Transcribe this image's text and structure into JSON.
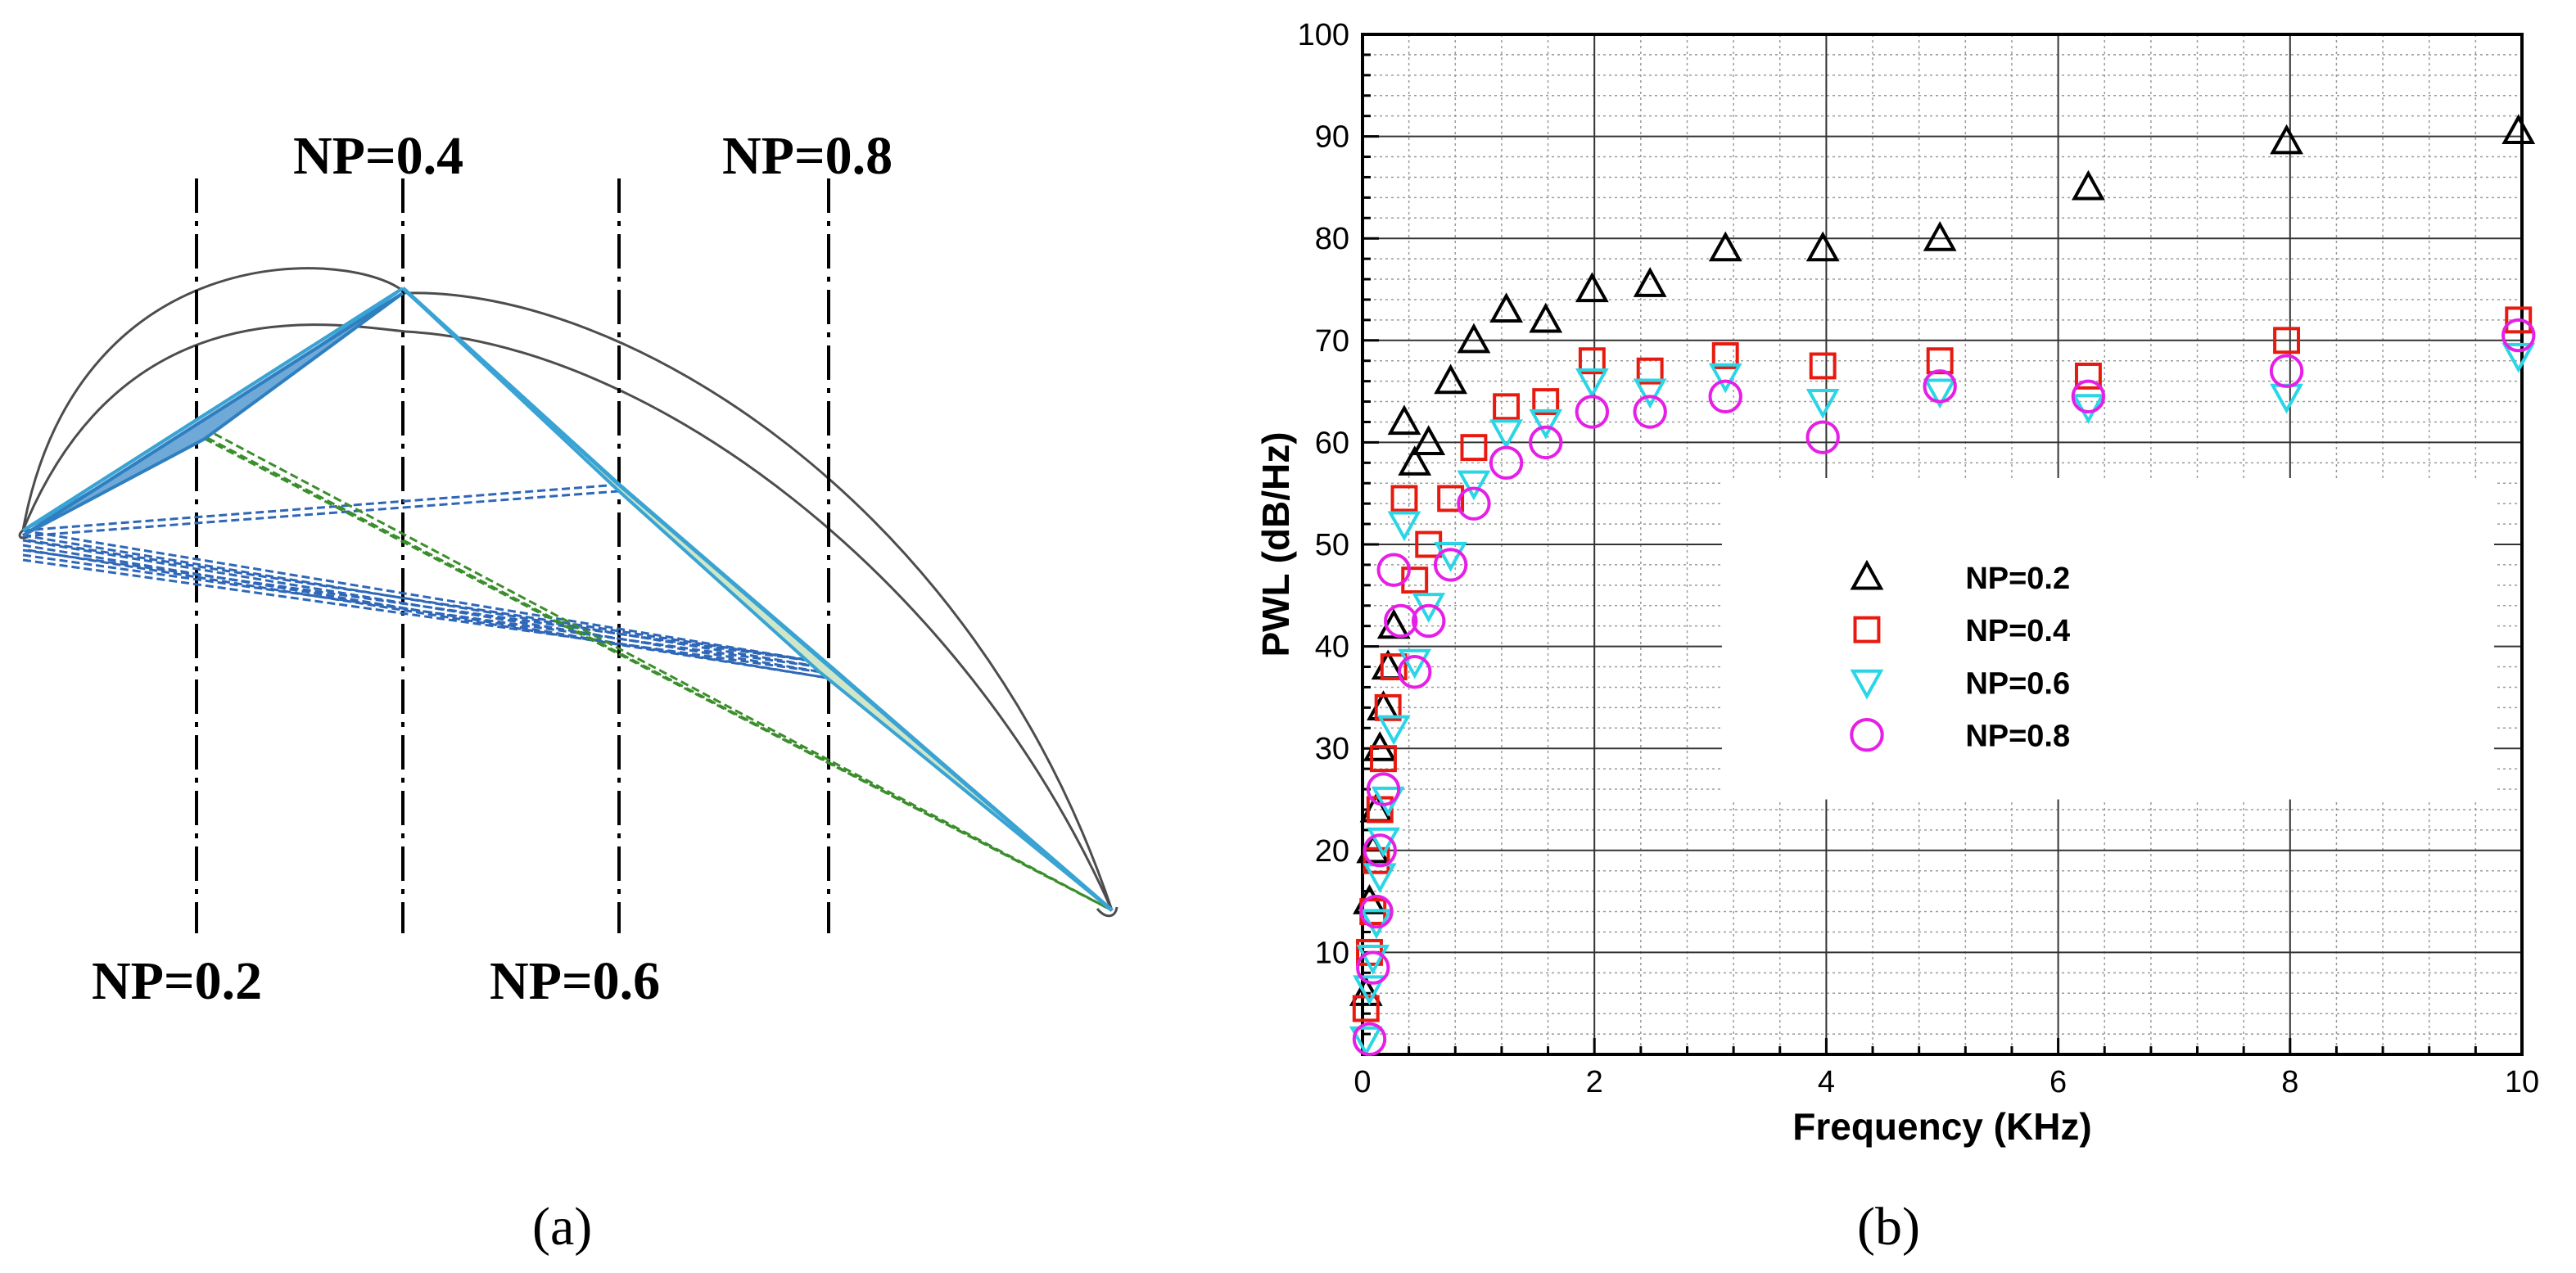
{
  "panel_a": {
    "labels": {
      "np02": "NP=0.2",
      "np04": "NP=0.4",
      "np06": "NP=0.6",
      "np08": "NP=0.8"
    },
    "caption": "(a)",
    "colors": {
      "outline": "#4d4d4d",
      "blue": "#2f67b8",
      "teal": "#39a3d4",
      "green": "#3b8e2c",
      "fill": "#cfe6c8"
    }
  },
  "panel_b": {
    "caption": "(b)"
  },
  "chart_data": {
    "type": "scatter",
    "title": "",
    "xlabel": "Frequency (KHz)",
    "ylabel": "PWL (dB/Hz)",
    "xlim": [
      0,
      10
    ],
    "ylim": [
      0,
      100
    ],
    "xticks": [
      "0",
      "2",
      "4",
      "6",
      "8",
      "10"
    ],
    "yticks": [
      "10",
      "20",
      "30",
      "40",
      "50",
      "60",
      "70",
      "80",
      "90",
      "100"
    ],
    "grid": true,
    "legend": "center-right",
    "series": [
      {
        "name": "NP=0.2",
        "marker": "triangle-up",
        "color": "#000000",
        "x": [
          0.03,
          0.06,
          0.09,
          0.12,
          0.15,
          0.18,
          0.22,
          0.27,
          0.36,
          0.45,
          0.57,
          0.76,
          0.96,
          1.24,
          1.58,
          1.98,
          2.48,
          3.13,
          3.97,
          4.98,
          6.26,
          7.97,
          9.97
        ],
        "y": [
          6,
          15,
          20,
          24,
          30,
          34,
          38,
          42,
          62,
          58,
          60,
          66,
          70,
          73,
          72,
          75,
          75.5,
          79,
          79,
          80,
          85,
          89.5,
          90.5
        ]
      },
      {
        "name": "NP=0.4",
        "marker": "square",
        "color": "#e8190f",
        "x": [
          0.03,
          0.06,
          0.09,
          0.12,
          0.15,
          0.18,
          0.22,
          0.27,
          0.36,
          0.45,
          0.57,
          0.76,
          0.96,
          1.24,
          1.58,
          1.98,
          2.48,
          3.13,
          3.97,
          4.98,
          6.26,
          7.97,
          9.97
        ],
        "y": [
          4.5,
          10,
          14,
          19,
          24,
          29,
          34,
          38,
          54.5,
          46.5,
          50,
          54.5,
          59.5,
          63.5,
          64,
          68,
          67,
          68.5,
          67.5,
          68,
          66.5,
          70,
          72
        ]
      },
      {
        "name": "NP=0.6",
        "marker": "triangle-down",
        "color": "#2ad6e6",
        "x": [
          0.03,
          0.06,
          0.09,
          0.12,
          0.15,
          0.18,
          0.22,
          0.27,
          0.36,
          0.45,
          0.57,
          0.76,
          0.96,
          1.24,
          1.58,
          1.98,
          2.48,
          3.13,
          3.97,
          4.98,
          6.26,
          7.97,
          9.97
        ],
        "y": [
          1.5,
          6.5,
          9.5,
          13,
          17.5,
          21,
          25,
          32,
          52,
          38.5,
          44,
          49,
          56,
          61,
          62,
          66,
          65,
          66.5,
          64,
          65,
          63.5,
          64.5,
          68.5
        ]
      },
      {
        "name": "NP=0.8",
        "marker": "circle",
        "color": "#e61ee6",
        "x": [
          0.06,
          0.09,
          0.12,
          0.15,
          0.18,
          0.27,
          0.33,
          0.45,
          0.57,
          0.76,
          0.96,
          1.24,
          1.58,
          1.98,
          2.48,
          3.13,
          3.97,
          4.98,
          6.26,
          7.97,
          9.97
        ],
        "y": [
          1.5,
          8.5,
          14,
          20,
          26,
          47.5,
          42.5,
          37.5,
          42.5,
          48,
          54,
          58,
          60,
          63,
          63,
          64.5,
          60.5,
          65.5,
          64.5,
          67,
          70.5
        ]
      }
    ]
  }
}
